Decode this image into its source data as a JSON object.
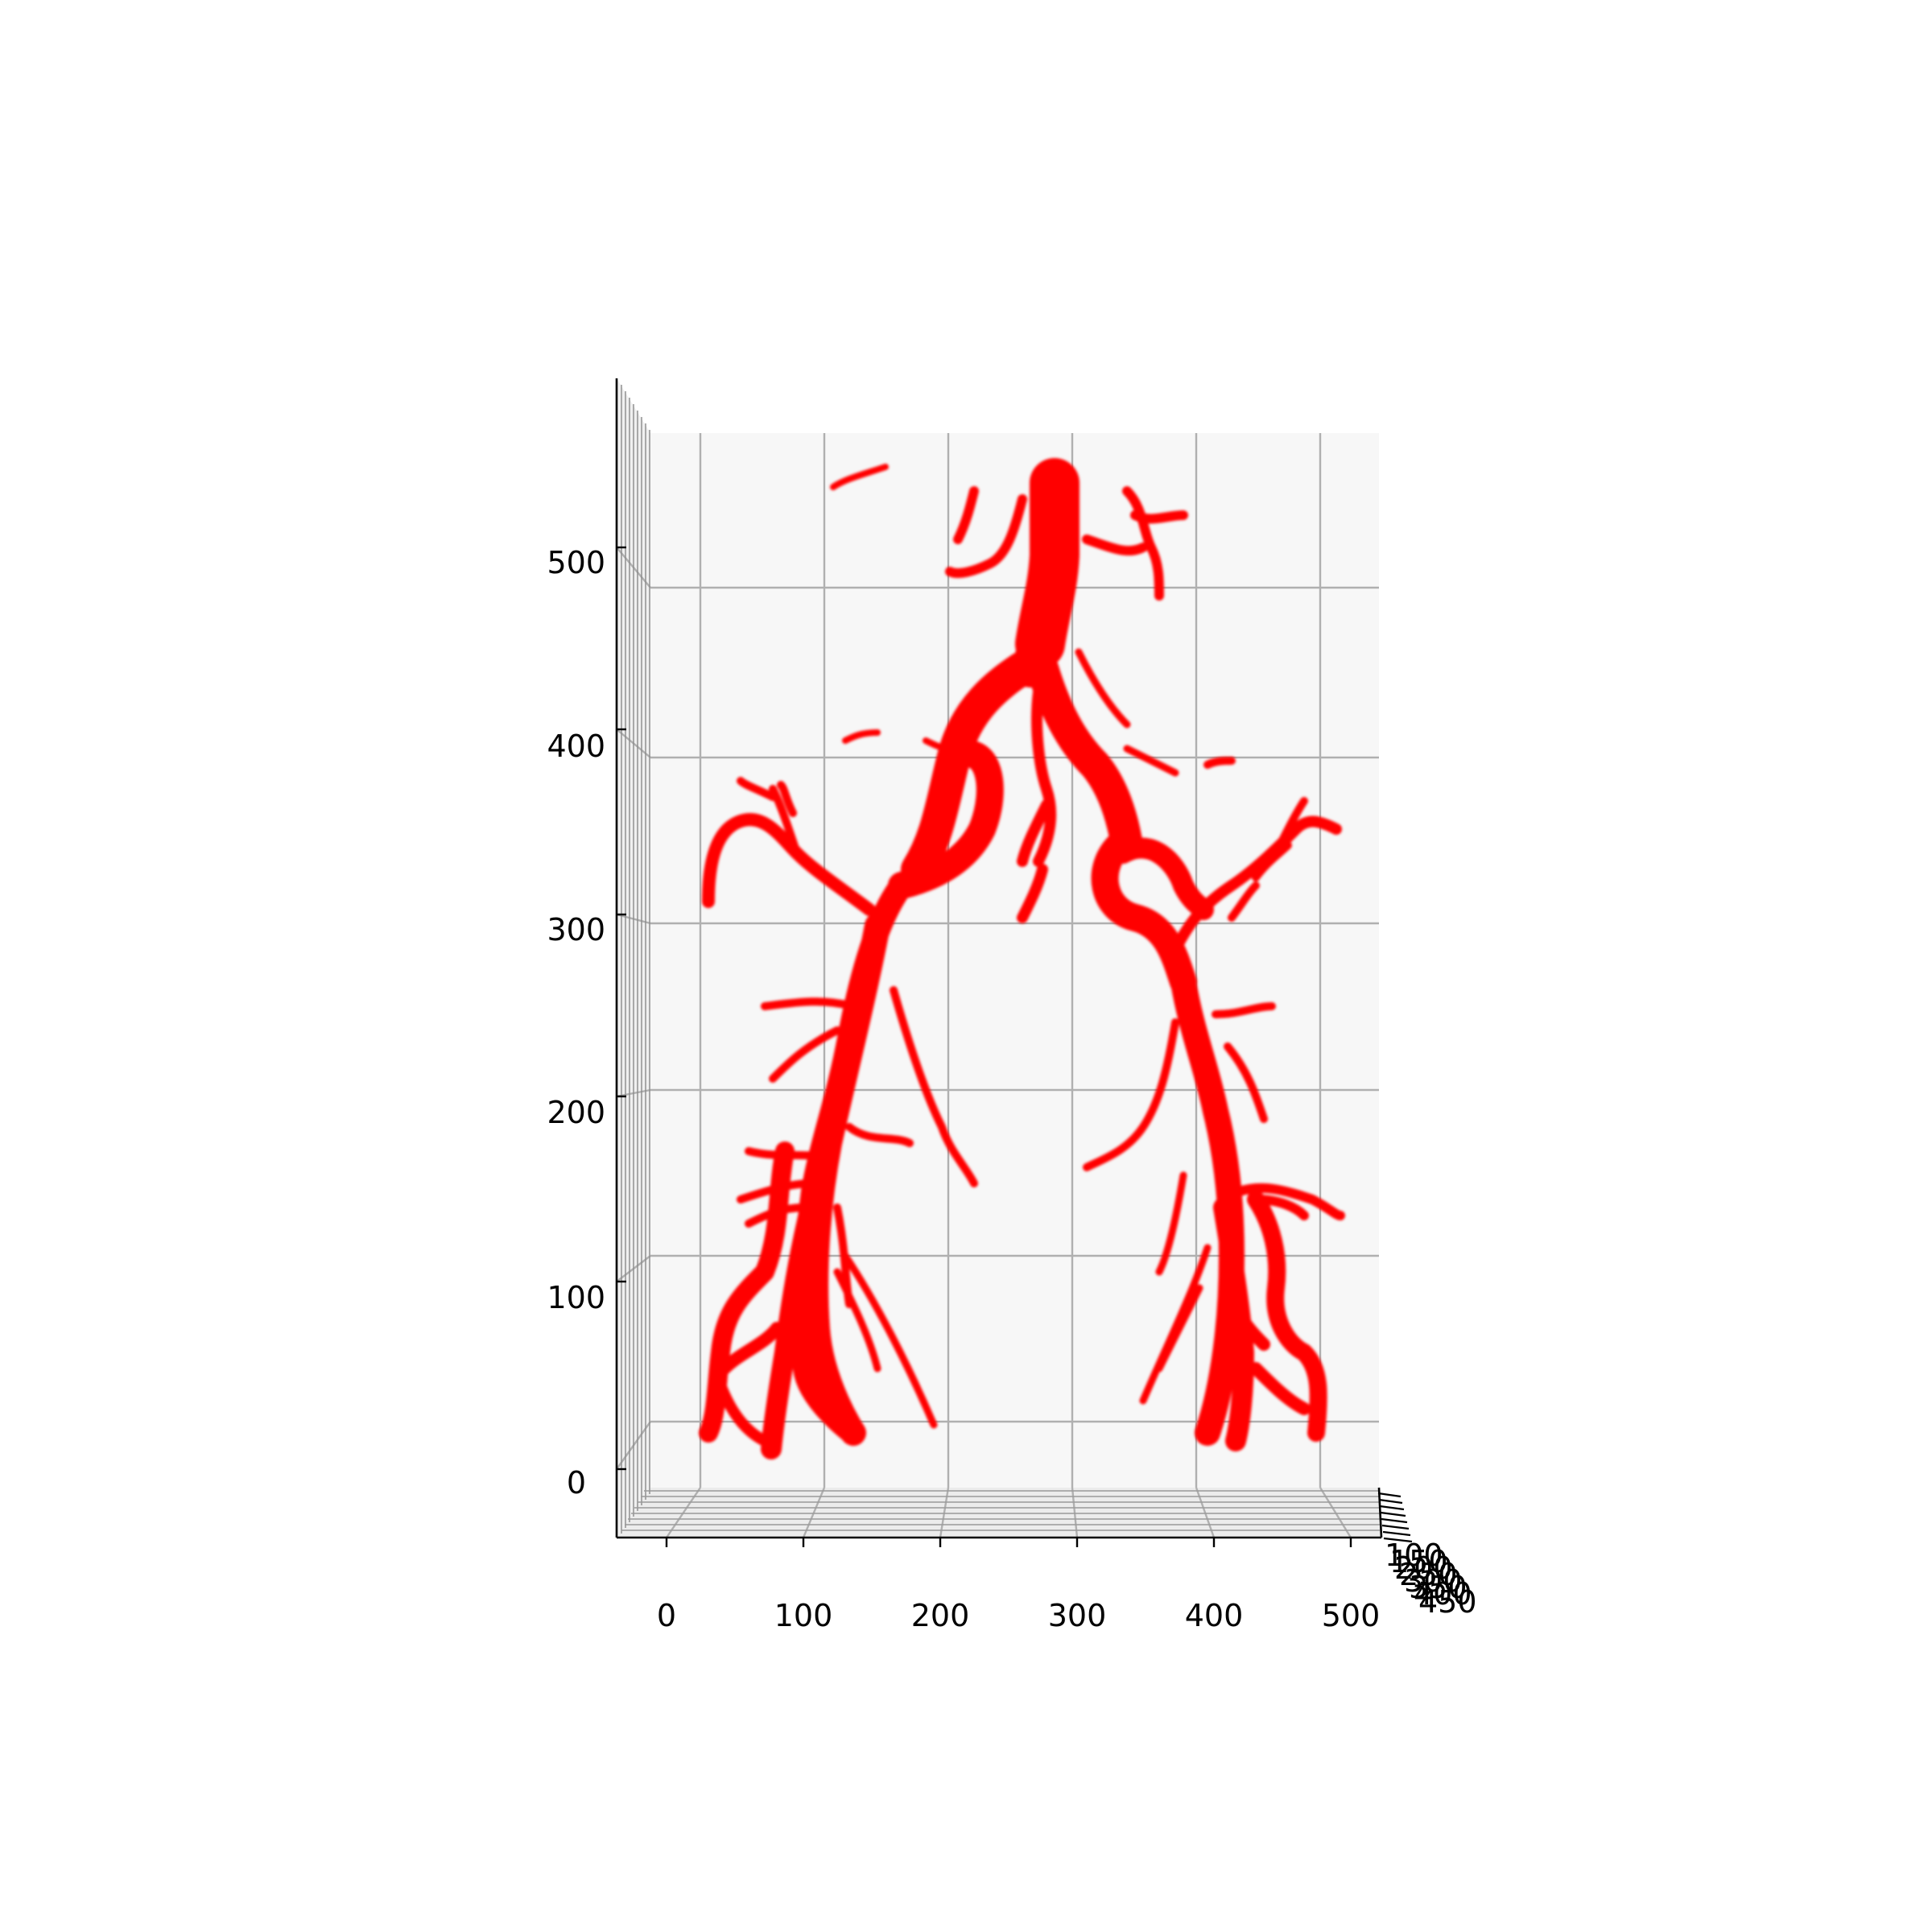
{
  "chart_data": {
    "type": "3d-volume",
    "subject": "volumetric vessel render",
    "xticks": [
      "0",
      "100",
      "200",
      "300",
      "400",
      "500"
    ],
    "zticks": [
      "0",
      "100",
      "200",
      "300",
      "400",
      "500"
    ],
    "yticks": [
      "100",
      "150",
      "200",
      "250",
      "300",
      "350",
      "400",
      "450"
    ],
    "xlim": [
      0,
      512
    ],
    "zlim": [
      0,
      560
    ],
    "pane_color": "#f7f7f7",
    "grid_color": "#b0b0b0",
    "vessel_color": "#ff0000"
  }
}
